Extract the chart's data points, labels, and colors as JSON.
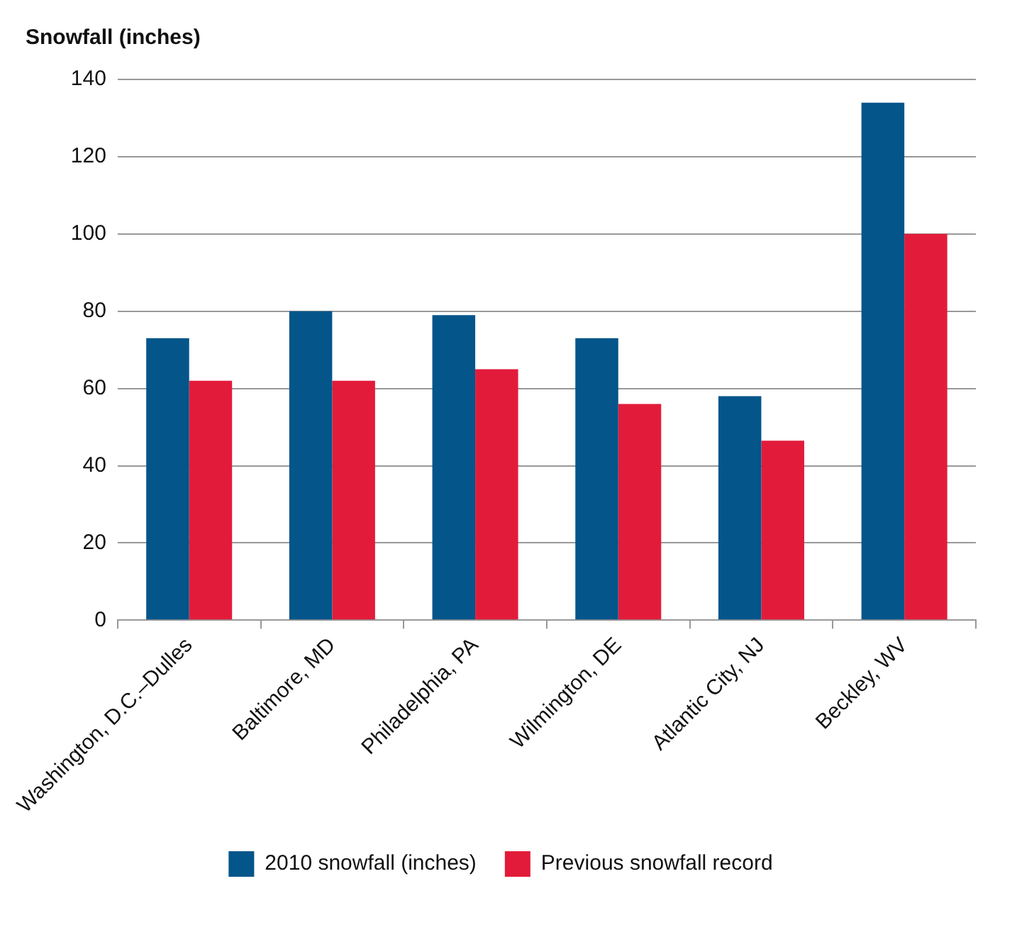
{
  "chart_data": {
    "type": "bar",
    "ylabel": "Snowfall (inches)",
    "categories": [
      "Washington, D.C.–Dulles",
      "Baltimore, MD",
      "Philadelphia, PA",
      "Wilmington, DE",
      "Atlantic City, NJ",
      "Beckley, WV"
    ],
    "series": [
      {
        "name": "2010 snowfall (inches)",
        "color": "#03558a",
        "values": [
          73,
          80,
          79,
          73,
          58,
          134
        ]
      },
      {
        "name": "Previous snowfall record",
        "color": "#e31b3a",
        "values": [
          62,
          62,
          65,
          56,
          46.5,
          100
        ]
      }
    ],
    "ylim": [
      0,
      140
    ],
    "yticks": [
      0,
      20,
      40,
      60,
      80,
      100,
      120,
      140
    ],
    "grid": "y",
    "legend": "bottom"
  }
}
